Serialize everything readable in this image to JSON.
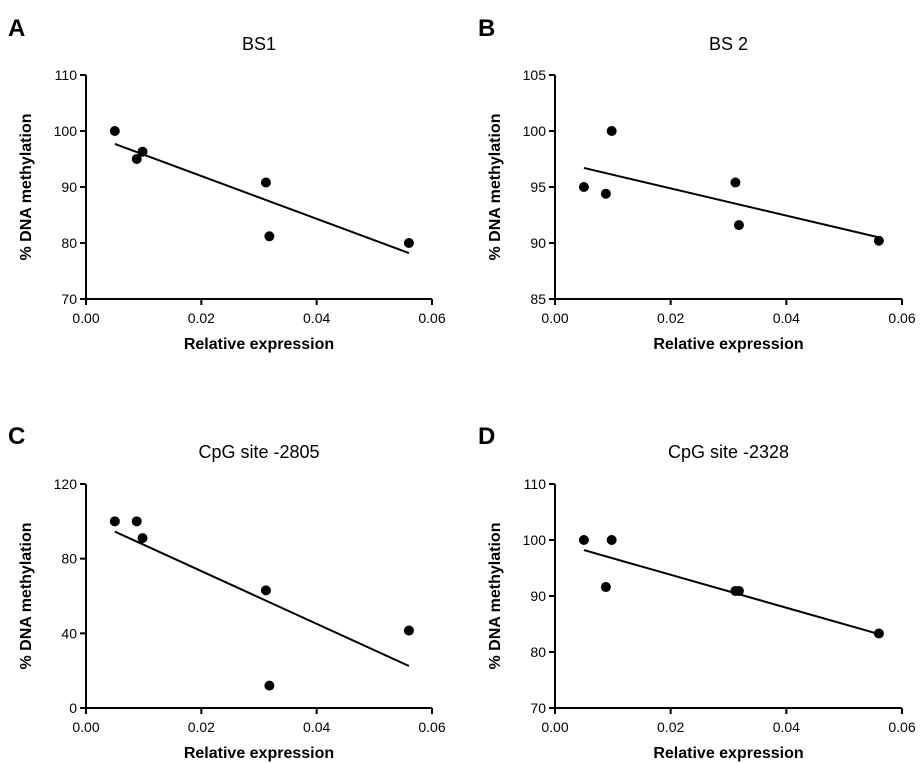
{
  "chart_data": [
    {
      "panel": "A",
      "type": "scatter",
      "title": "BS1",
      "xlabel": "Relative expression",
      "ylabel": "% DNA methylation",
      "xlim": [
        0,
        0.06
      ],
      "ylim": [
        70,
        110
      ],
      "xticks": [
        "0.00",
        "0.02",
        "0.04",
        "0.06"
      ],
      "yticks": [
        "70",
        "80",
        "90",
        "100",
        "110"
      ],
      "points": [
        {
          "x": 0.005,
          "y": 100
        },
        {
          "x": 0.0088,
          "y": 95
        },
        {
          "x": 0.0098,
          "y": 96.3
        },
        {
          "x": 0.0312,
          "y": 90.8
        },
        {
          "x": 0.0318,
          "y": 81.2
        },
        {
          "x": 0.056,
          "y": 80
        }
      ],
      "trendline": [
        {
          "x": 0.005,
          "y": 97.7
        },
        {
          "x": 0.056,
          "y": 78.2
        }
      ],
      "grid": false
    },
    {
      "panel": "B",
      "type": "scatter",
      "title": "BS 2",
      "xlabel": "Relative expression",
      "ylabel": "% DNA methylation",
      "xlim": [
        0,
        0.06
      ],
      "ylim": [
        85,
        105
      ],
      "xticks": [
        "0.00",
        "0.02",
        "0.04",
        "0.06"
      ],
      "yticks": [
        "85",
        "90",
        "95",
        "100",
        "105"
      ],
      "points": [
        {
          "x": 0.005,
          "y": 95
        },
        {
          "x": 0.0088,
          "y": 94.4
        },
        {
          "x": 0.0098,
          "y": 100
        },
        {
          "x": 0.0312,
          "y": 95.4
        },
        {
          "x": 0.0318,
          "y": 91.6
        },
        {
          "x": 0.056,
          "y": 90.2
        }
      ],
      "trendline": [
        {
          "x": 0.005,
          "y": 96.7
        },
        {
          "x": 0.056,
          "y": 90.5
        }
      ],
      "grid": false
    },
    {
      "panel": "C",
      "type": "scatter",
      "title": "CpG site -2805",
      "xlabel": "Relative expression",
      "ylabel": "% DNA methylation",
      "xlim": [
        0,
        0.06
      ],
      "ylim": [
        0,
        120
      ],
      "xticks": [
        "0.00",
        "0.02",
        "0.04",
        "0.06"
      ],
      "yticks": [
        "0",
        "40",
        "80",
        "120"
      ],
      "points": [
        {
          "x": 0.005,
          "y": 100
        },
        {
          "x": 0.0088,
          "y": 100
        },
        {
          "x": 0.0098,
          "y": 91
        },
        {
          "x": 0.0312,
          "y": 63
        },
        {
          "x": 0.0318,
          "y": 12
        },
        {
          "x": 0.056,
          "y": 41.5
        }
      ],
      "trendline": [
        {
          "x": 0.005,
          "y": 94.5
        },
        {
          "x": 0.056,
          "y": 22.5
        }
      ],
      "grid": false
    },
    {
      "panel": "D",
      "type": "scatter",
      "title": "CpG site -2328",
      "xlabel": "Relative expression",
      "ylabel": "% DNA methylation",
      "xlim": [
        0,
        0.06
      ],
      "ylim": [
        70,
        110
      ],
      "xticks": [
        "0.00",
        "0.02",
        "0.04",
        "0.06"
      ],
      "yticks": [
        "70",
        "80",
        "90",
        "100",
        "110"
      ],
      "points": [
        {
          "x": 0.005,
          "y": 100
        },
        {
          "x": 0.0088,
          "y": 91.6
        },
        {
          "x": 0.0098,
          "y": 100
        },
        {
          "x": 0.0312,
          "y": 90.9
        },
        {
          "x": 0.0318,
          "y": 90.9
        },
        {
          "x": 0.056,
          "y": 83.3
        }
      ],
      "trendline": [
        {
          "x": 0.005,
          "y": 98.2
        },
        {
          "x": 0.056,
          "y": 83.2
        }
      ],
      "grid": false
    }
  ]
}
